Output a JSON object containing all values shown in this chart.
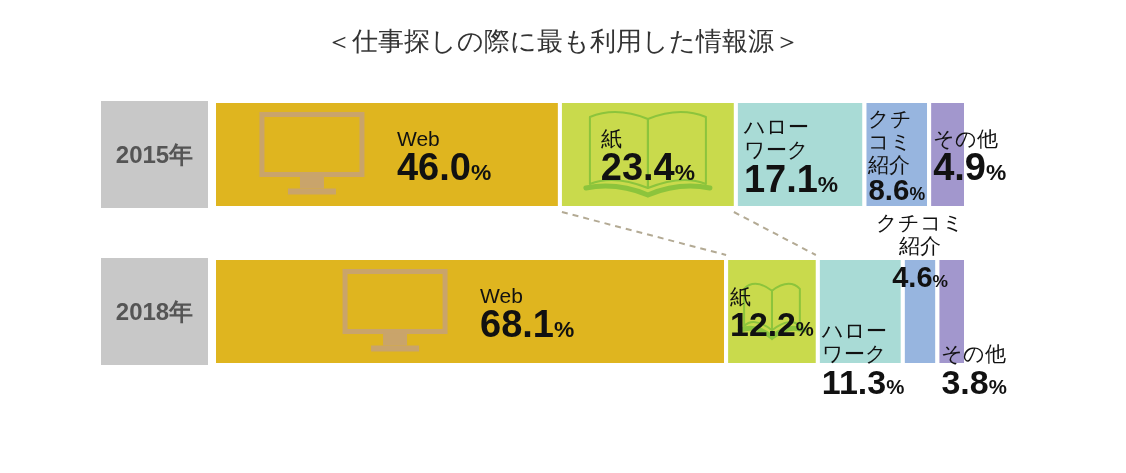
{
  "chart_data": {
    "type": "bar",
    "orientation": "horizontal",
    "stacked": true,
    "title": "＜仕事探しの際に最も利用した情報源＞",
    "categories": [
      "2015年",
      "2018年"
    ],
    "series": [
      {
        "name": "Web",
        "color": "#dfb51f",
        "values": [
          46.0,
          68.1
        ],
        "value_labels": [
          "46.0%",
          "68.1%"
        ]
      },
      {
        "name": "紙",
        "color": "#c9da4c",
        "values": [
          23.4,
          12.2
        ],
        "value_labels": [
          "23.4%",
          "12.2%"
        ]
      },
      {
        "name": "ハローワーク",
        "color": "#a9dbd6",
        "values": [
          17.1,
          11.3
        ],
        "value_labels": [
          "17.1%",
          "11.3%"
        ]
      },
      {
        "name": "クチコミ紹介",
        "color": "#97b5df",
        "values": [
          8.6,
          4.6
        ],
        "value_labels": [
          "8.6%",
          "4.6%"
        ]
      },
      {
        "name": "その他",
        "color": "#a297cd",
        "values": [
          4.9,
          3.8
        ],
        "value_labels": [
          "4.9%",
          "3.8%"
        ]
      }
    ]
  }
}
